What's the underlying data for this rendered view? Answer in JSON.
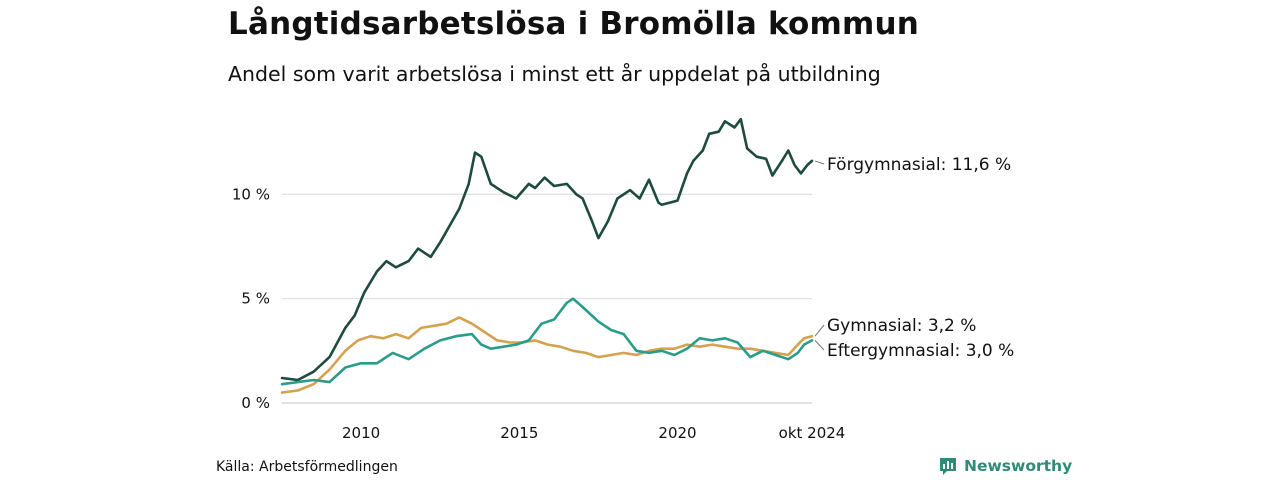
{
  "title": "Långtidsarbetslösa i Bromölla kommun",
  "subtitle": "Andel som varit arbetslösa i minst ett år uppdelat på utbildning",
  "source": "Källa: Arbetsförmedlingen",
  "brand": {
    "name": "Newsworthy",
    "icon": "newsworthy-logo-icon",
    "color": "#2f8a78"
  },
  "chart_data": {
    "type": "line",
    "title": "Långtidsarbetslösa i Bromölla kommun",
    "subtitle": "Andel som varit arbetslösa i minst ett år uppdelat på utbildning",
    "xlabel": "",
    "ylabel": "",
    "x_start": "2008-01",
    "x_end": "2024-10",
    "xlim": [
      2008.0,
      2024.75
    ],
    "ylim": [
      0,
      13.8
    ],
    "grid": true,
    "y_ticks": [
      {
        "value": 0,
        "label": "0 %"
      },
      {
        "value": 5,
        "label": "5 %"
      },
      {
        "value": 10,
        "label": "10 %"
      }
    ],
    "x_ticks": [
      {
        "value": 2010.5,
        "label": "2010"
      },
      {
        "value": 2015.5,
        "label": "2015"
      },
      {
        "value": 2020.5,
        "label": "2020"
      },
      {
        "value": 2024.75,
        "label": "okt 2024"
      }
    ],
    "series": [
      {
        "name": "Förgymnasial",
        "end_label": "Förgymnasial: 11,6 %",
        "color": "#1e4a3f",
        "points": [
          [
            2008.0,
            1.2
          ],
          [
            2008.5,
            1.1
          ],
          [
            2009.0,
            1.5
          ],
          [
            2009.5,
            2.2
          ],
          [
            2010.0,
            3.6
          ],
          [
            2010.3,
            4.2
          ],
          [
            2010.6,
            5.3
          ],
          [
            2011.0,
            6.3
          ],
          [
            2011.3,
            6.8
          ],
          [
            2011.6,
            6.5
          ],
          [
            2012.0,
            6.8
          ],
          [
            2012.3,
            7.4
          ],
          [
            2012.7,
            7.0
          ],
          [
            2013.0,
            7.7
          ],
          [
            2013.3,
            8.5
          ],
          [
            2013.6,
            9.3
          ],
          [
            2013.9,
            10.5
          ],
          [
            2014.1,
            12.0
          ],
          [
            2014.3,
            11.8
          ],
          [
            2014.6,
            10.5
          ],
          [
            2015.0,
            10.1
          ],
          [
            2015.4,
            9.8
          ],
          [
            2015.8,
            10.5
          ],
          [
            2016.0,
            10.3
          ],
          [
            2016.3,
            10.8
          ],
          [
            2016.6,
            10.4
          ],
          [
            2017.0,
            10.5
          ],
          [
            2017.3,
            10.0
          ],
          [
            2017.5,
            9.8
          ],
          [
            2017.8,
            8.7
          ],
          [
            2018.0,
            7.9
          ],
          [
            2018.3,
            8.7
          ],
          [
            2018.6,
            9.8
          ],
          [
            2019.0,
            10.2
          ],
          [
            2019.3,
            9.8
          ],
          [
            2019.6,
            10.7
          ],
          [
            2019.9,
            9.6
          ],
          [
            2020.0,
            9.5
          ],
          [
            2020.5,
            9.7
          ],
          [
            2020.8,
            11.0
          ],
          [
            2021.0,
            11.6
          ],
          [
            2021.3,
            12.1
          ],
          [
            2021.5,
            12.9
          ],
          [
            2021.8,
            13.0
          ],
          [
            2022.0,
            13.5
          ],
          [
            2022.3,
            13.2
          ],
          [
            2022.5,
            13.6
          ],
          [
            2022.7,
            12.2
          ],
          [
            2023.0,
            11.8
          ],
          [
            2023.3,
            11.7
          ],
          [
            2023.5,
            10.9
          ],
          [
            2023.8,
            11.6
          ],
          [
            2024.0,
            12.1
          ],
          [
            2024.2,
            11.4
          ],
          [
            2024.4,
            11.0
          ],
          [
            2024.6,
            11.4
          ],
          [
            2024.75,
            11.6
          ]
        ]
      },
      {
        "name": "Gymnasial",
        "end_label": "Gymnasial:  3,2 %",
        "color": "#d4a24e",
        "points": [
          [
            2008.0,
            0.5
          ],
          [
            2008.5,
            0.6
          ],
          [
            2009.0,
            0.9
          ],
          [
            2009.5,
            1.6
          ],
          [
            2010.0,
            2.5
          ],
          [
            2010.4,
            3.0
          ],
          [
            2010.8,
            3.2
          ],
          [
            2011.2,
            3.1
          ],
          [
            2011.6,
            3.3
          ],
          [
            2012.0,
            3.1
          ],
          [
            2012.4,
            3.6
          ],
          [
            2012.8,
            3.7
          ],
          [
            2013.2,
            3.8
          ],
          [
            2013.6,
            4.1
          ],
          [
            2014.0,
            3.8
          ],
          [
            2014.4,
            3.4
          ],
          [
            2014.8,
            3.0
          ],
          [
            2015.2,
            2.9
          ],
          [
            2015.6,
            2.9
          ],
          [
            2016.0,
            3.0
          ],
          [
            2016.4,
            2.8
          ],
          [
            2016.8,
            2.7
          ],
          [
            2017.2,
            2.5
          ],
          [
            2017.6,
            2.4
          ],
          [
            2018.0,
            2.2
          ],
          [
            2018.4,
            2.3
          ],
          [
            2018.8,
            2.4
          ],
          [
            2019.2,
            2.3
          ],
          [
            2019.6,
            2.5
          ],
          [
            2020.0,
            2.6
          ],
          [
            2020.4,
            2.6
          ],
          [
            2020.8,
            2.8
          ],
          [
            2021.2,
            2.7
          ],
          [
            2021.6,
            2.8
          ],
          [
            2022.0,
            2.7
          ],
          [
            2022.4,
            2.6
          ],
          [
            2022.8,
            2.6
          ],
          [
            2023.2,
            2.5
          ],
          [
            2023.6,
            2.4
          ],
          [
            2024.0,
            2.3
          ],
          [
            2024.3,
            2.8
          ],
          [
            2024.5,
            3.1
          ],
          [
            2024.75,
            3.2
          ]
        ]
      },
      {
        "name": "Eftergymnasial",
        "end_label": "Eftergymnasial:  3,0 %",
        "color": "#2a9d8a",
        "points": [
          [
            2008.0,
            0.9
          ],
          [
            2008.5,
            1.0
          ],
          [
            2009.0,
            1.1
          ],
          [
            2009.5,
            1.0
          ],
          [
            2010.0,
            1.7
          ],
          [
            2010.5,
            1.9
          ],
          [
            2011.0,
            1.9
          ],
          [
            2011.5,
            2.4
          ],
          [
            2012.0,
            2.1
          ],
          [
            2012.5,
            2.6
          ],
          [
            2013.0,
            3.0
          ],
          [
            2013.5,
            3.2
          ],
          [
            2014.0,
            3.3
          ],
          [
            2014.3,
            2.8
          ],
          [
            2014.6,
            2.6
          ],
          [
            2015.0,
            2.7
          ],
          [
            2015.4,
            2.8
          ],
          [
            2015.8,
            3.0
          ],
          [
            2016.2,
            3.8
          ],
          [
            2016.6,
            4.0
          ],
          [
            2017.0,
            4.8
          ],
          [
            2017.2,
            5.0
          ],
          [
            2017.5,
            4.6
          ],
          [
            2018.0,
            3.9
          ],
          [
            2018.4,
            3.5
          ],
          [
            2018.8,
            3.3
          ],
          [
            2019.2,
            2.5
          ],
          [
            2019.6,
            2.4
          ],
          [
            2020.0,
            2.5
          ],
          [
            2020.4,
            2.3
          ],
          [
            2020.8,
            2.6
          ],
          [
            2021.2,
            3.1
          ],
          [
            2021.6,
            3.0
          ],
          [
            2022.0,
            3.1
          ],
          [
            2022.4,
            2.9
          ],
          [
            2022.8,
            2.2
          ],
          [
            2023.2,
            2.5
          ],
          [
            2023.6,
            2.3
          ],
          [
            2024.0,
            2.1
          ],
          [
            2024.3,
            2.4
          ],
          [
            2024.5,
            2.8
          ],
          [
            2024.75,
            3.0
          ]
        ]
      }
    ]
  }
}
